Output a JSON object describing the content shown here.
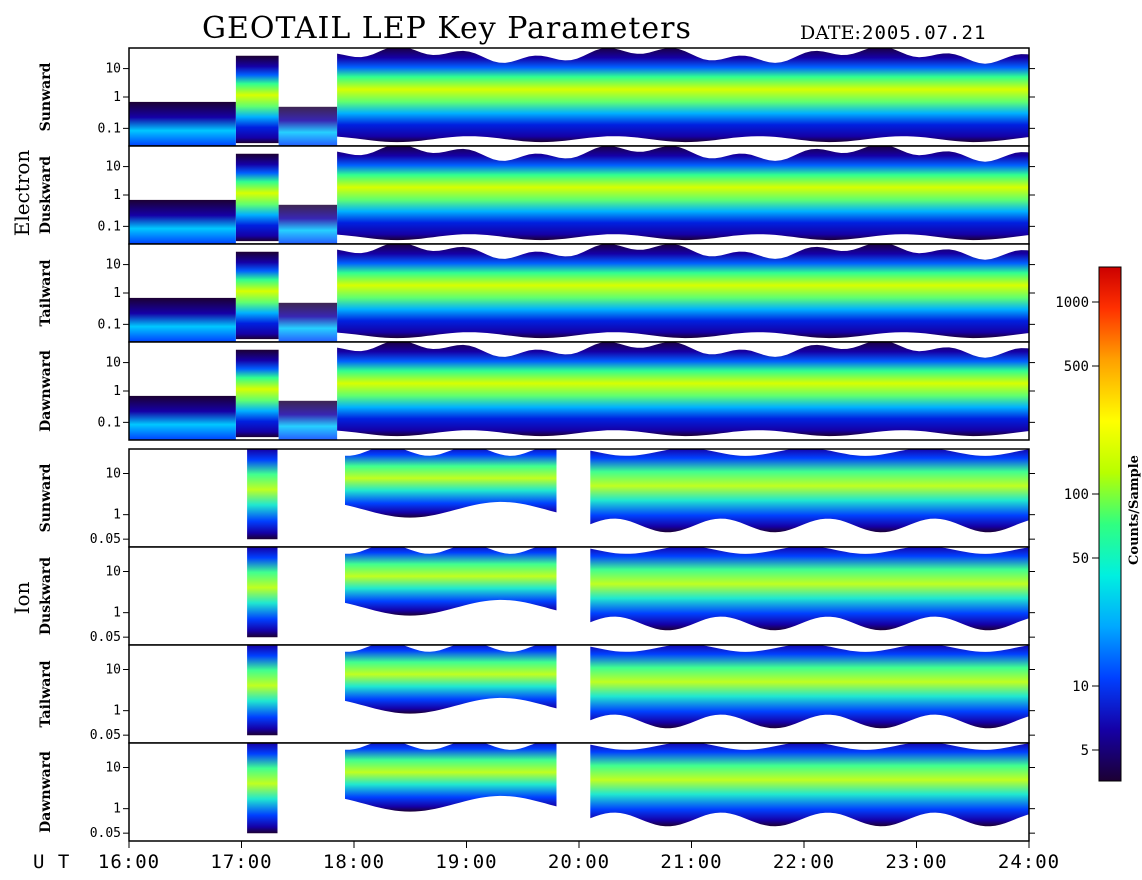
{
  "title": "GEOTAIL LEP Key Parameters",
  "date_label": "DATE:",
  "date_value": "2005.07.21",
  "chart_data": {
    "type": "heatmap",
    "title": "GEOTAIL LEP Key Parameters",
    "date": "2005.07.21",
    "xlabel": "U T",
    "x_ticks": [
      "16:00",
      "17:00",
      "18:00",
      "19:00",
      "20:00",
      "21:00",
      "22:00",
      "23:00",
      "24:00"
    ],
    "xlim": [
      "16:00",
      "24:00"
    ],
    "groups": [
      {
        "name": "Electron",
        "y_ticks": [
          "10",
          "1",
          "0.1"
        ],
        "panels": [
          "Sunward",
          "Duskward",
          "Tailward",
          "Dawnward"
        ]
      },
      {
        "name": "Ion",
        "y_ticks": [
          "10",
          "1",
          "0.05"
        ],
        "panels": [
          "Sunward",
          "Duskward",
          "Tailward",
          "Dawnward"
        ]
      }
    ],
    "colorbar": {
      "label": "Counts/Sample",
      "scale": "log",
      "ticks": [
        "1000",
        "500",
        "100",
        "50",
        "10",
        "5"
      ],
      "colors": [
        "#1c0033",
        "#1500a6",
        "#0040ff",
        "#00a8ff",
        "#00f0e0",
        "#30ff80",
        "#b8ff00",
        "#ffff00",
        "#ffa000",
        "#ff3000",
        "#cc0000"
      ]
    }
  }
}
